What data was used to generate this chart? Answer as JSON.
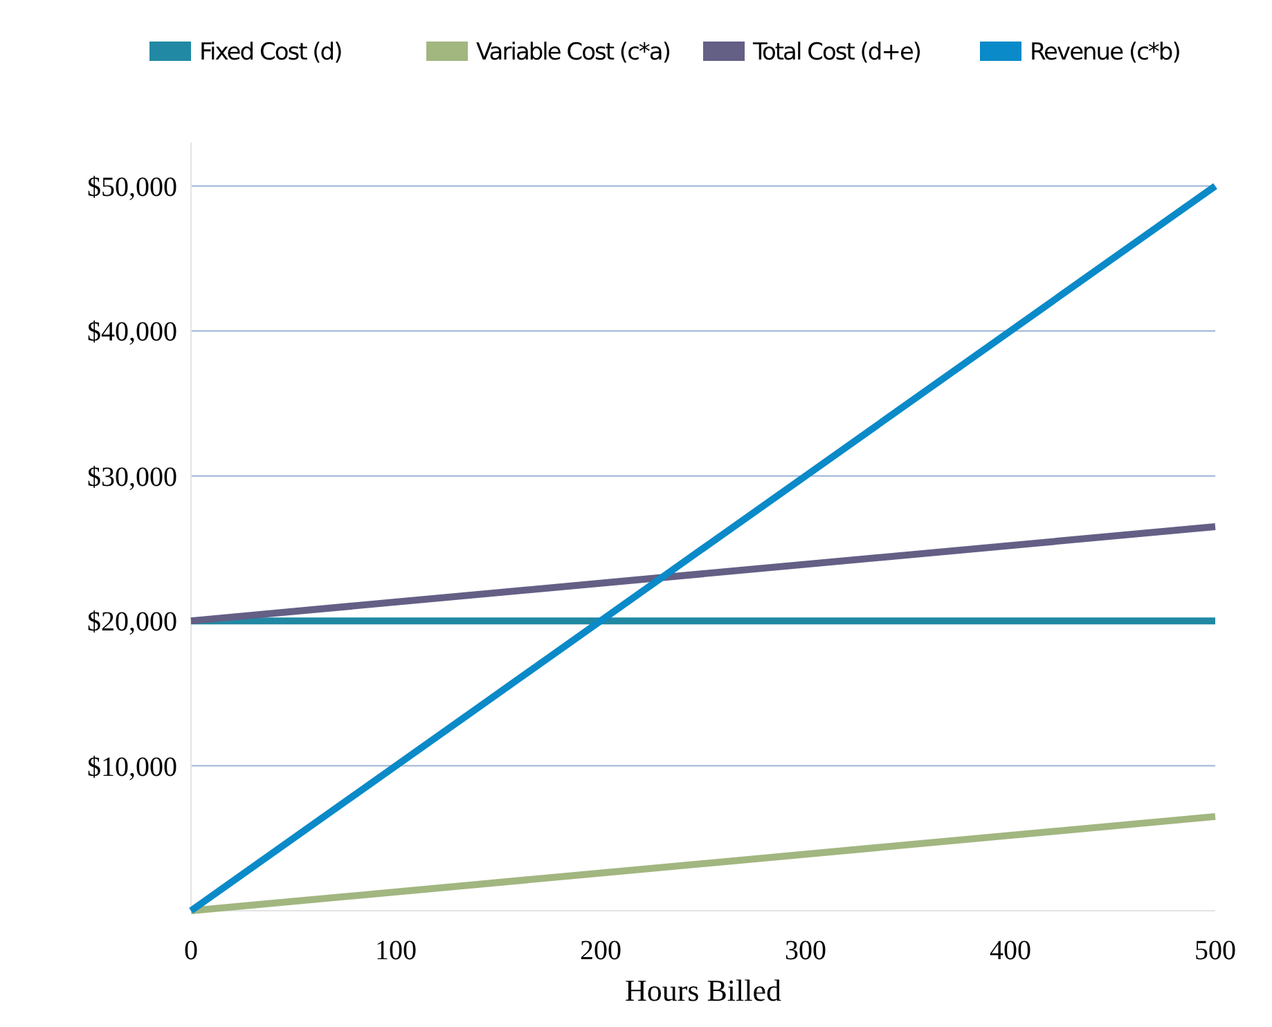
{
  "chart_data": {
    "type": "line",
    "xlabel": "Hours Billed",
    "x": [
      0,
      500
    ],
    "xlim": [
      0,
      500
    ],
    "xticks": [
      0,
      100,
      200,
      300,
      400,
      500
    ],
    "ylim": [
      0,
      53000
    ],
    "yticks": [
      {
        "value": 10000,
        "label": "$10,000"
      },
      {
        "value": 20000,
        "label": "$20,000"
      },
      {
        "value": 30000,
        "label": "$30,000"
      },
      {
        "value": 40000,
        "label": "$40,000"
      },
      {
        "value": 50000,
        "label": "$50,000"
      }
    ],
    "grid": "y",
    "legend": "top",
    "marker": "none",
    "line_style": "solid",
    "series": [
      {
        "name": "Fixed Cost (d)",
        "color": "#2189a3",
        "values": [
          20000,
          20000
        ]
      },
      {
        "name": "Variable Cost (c*a)",
        "color": "#a2b680",
        "values": [
          0,
          6500
        ]
      },
      {
        "name": "Total Cost (d+e)",
        "color": "#635f85",
        "values": [
          20000,
          26500
        ]
      },
      {
        "name": "Revenue (c*b)",
        "color": "#0a8ac8",
        "values": [
          0,
          50000
        ]
      }
    ]
  }
}
